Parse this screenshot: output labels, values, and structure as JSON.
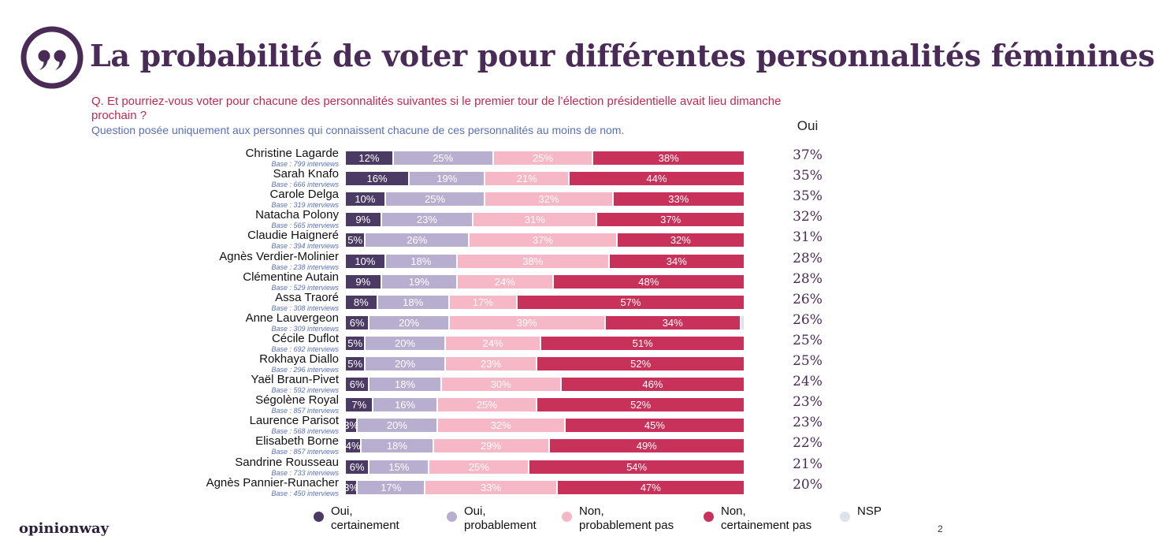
{
  "title": "La probabilité de voter pour différentes personnalités féminines",
  "question": "Q. Et pourriez-vous voter pour chacune des personnalités suivantes si le premier tour de l’élection présidentielle avait lieu dimanche prochain ?",
  "note": "Question posée uniquement aux personnes qui connaissent chacune de ces personnalités au moins de nom.",
  "oui_header": "Oui",
  "logo": "opinionway",
  "page_number": "2",
  "chart_data": {
    "type": "bar",
    "orientation": "horizontal",
    "stacked": true,
    "unit": "%",
    "x_range": [
      0,
      100
    ],
    "categories": [
      "Christine Lagarde",
      "Sarah Knafo",
      "Carole Delga",
      "Natacha Polony",
      "Claudie Haigneré",
      "Agnès Verdier-Molinier",
      "Clémentine Autain",
      "Assa Traoré",
      "Anne Lauvergeon",
      "Cécile Duflot",
      "Rokhaya Diallo",
      "Yaël Braun-Pivet",
      "Ségolène Royal",
      "Laurence Parisot",
      "Elisabeth Borne",
      "Sandrine Rousseau",
      "Agnès Pannier-Runacher"
    ],
    "bases": [
      "Base : 799 interviews",
      "Base : 666 interviews",
      "Base : 319 interviews",
      "Base : 565 interviews",
      "Base : 394 interviews",
      "Base : 238 interviews",
      "Base : 529 interviews",
      "Base : 308 interviews",
      "Base : 309 interviews",
      "Base : 692 interviews",
      "Base : 296 interviews",
      "Base : 592 interviews",
      "Base : 857 interviews",
      "Base : 568 interviews",
      "Base : 857 interviews",
      "Base : 733 interviews",
      "Base : 450 interviews"
    ],
    "series": [
      {
        "name": "Oui, certainement",
        "color": "#4b3a63",
        "values": [
          12,
          16,
          10,
          9,
          5,
          10,
          9,
          8,
          6,
          5,
          5,
          6,
          7,
          3,
          4,
          6,
          3
        ]
      },
      {
        "name": "Oui, probablement",
        "color": "#b8aecf",
        "values": [
          25,
          19,
          25,
          23,
          26,
          18,
          19,
          18,
          20,
          20,
          20,
          18,
          16,
          20,
          18,
          15,
          17
        ]
      },
      {
        "name": "Non, probablement pas",
        "color": "#f6b7c6",
        "values": [
          25,
          21,
          32,
          31,
          37,
          38,
          24,
          17,
          39,
          24,
          23,
          30,
          25,
          32,
          29,
          25,
          33
        ]
      },
      {
        "name": "Non, certainement pas",
        "color": "#c7315a",
        "values": [
          38,
          44,
          33,
          37,
          32,
          34,
          48,
          57,
          34,
          51,
          52,
          46,
          52,
          45,
          49,
          54,
          47
        ]
      },
      {
        "name": "NSP",
        "color": "#dde3ee",
        "values": [
          0,
          0,
          0,
          0,
          0,
          0,
          0,
          0,
          1,
          0,
          0,
          0,
          0,
          0,
          0,
          0,
          0
        ]
      }
    ],
    "oui_total": [
      "37%",
      "35%",
      "35%",
      "32%",
      "31%",
      "28%",
      "28%",
      "26%",
      "26%",
      "25%",
      "25%",
      "24%",
      "23%",
      "23%",
      "22%",
      "21%",
      "20%"
    ]
  }
}
